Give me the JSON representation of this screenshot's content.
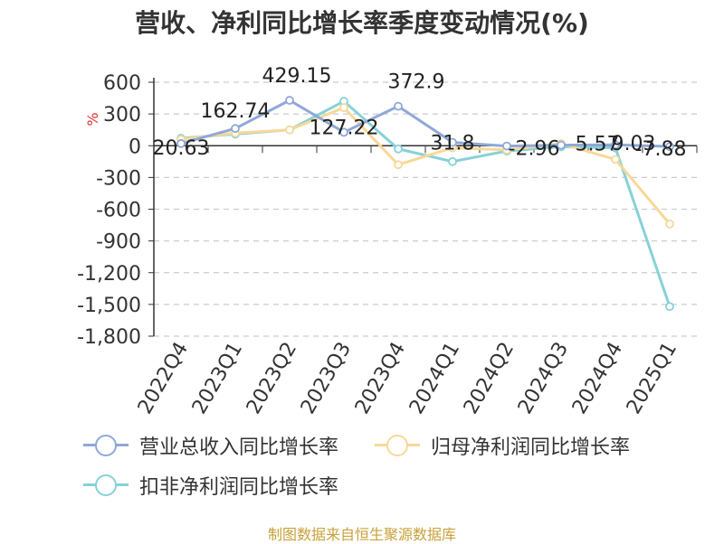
{
  "chart_data": {
    "type": "line",
    "title": "营收、净利同比增长率季度变动情况(%)",
    "ylabel": "%",
    "categories": [
      "2022Q4",
      "2023Q1",
      "2023Q2",
      "2023Q3",
      "2023Q4",
      "2024Q1",
      "2024Q2",
      "2024Q3",
      "2024Q4",
      "2025Q1"
    ],
    "ylim": [
      -1800,
      600
    ],
    "yticks": [
      600,
      300,
      0,
      -300,
      -600,
      -900,
      -1200,
      -1500,
      -1800
    ],
    "ytick_labels": [
      "600",
      "300",
      "0",
      "-300",
      "-600",
      "-900",
      "-1,200",
      "-1,500",
      "-1,800"
    ],
    "grid": true,
    "legend_position": "bottom",
    "series": [
      {
        "name": "营业总收入同比增长率",
        "color": "#8fa8d8",
        "values": [
          20.63,
          162.74,
          429.15,
          127.22,
          372.9,
          31.8,
          -2.96,
          5.57,
          9.03,
          -7.88
        ],
        "labels": [
          "20.63",
          "162.74",
          "429.15",
          "127.22",
          "372.9",
          "31.8",
          "-2.96",
          "5.57",
          "9.03",
          "-7.88"
        ]
      },
      {
        "name": "归母净利润同比增长率",
        "color": "#f8d898",
        "values": [
          60,
          120,
          150,
          360,
          -180,
          -20,
          -40,
          20,
          -130,
          -740
        ]
      },
      {
        "name": "扣非净利润同比增长率",
        "color": "#86d2d8",
        "values": [
          70,
          110,
          150,
          420,
          -30,
          -150,
          -50,
          -10,
          -20,
          -1520
        ]
      }
    ]
  },
  "source_note": "制图数据来自恒生聚源数据库"
}
